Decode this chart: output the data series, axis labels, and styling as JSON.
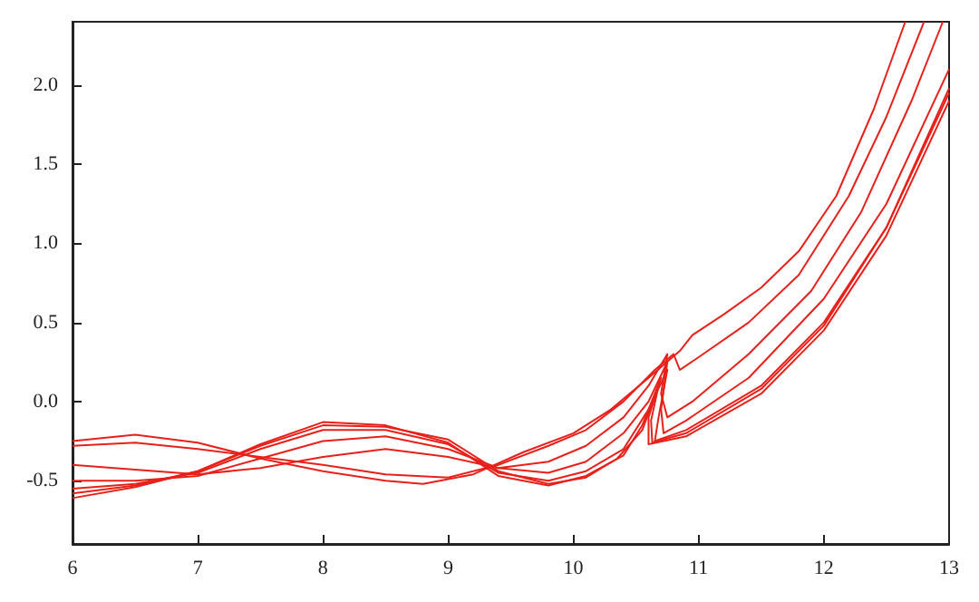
{
  "chart_data": {
    "type": "line",
    "xlim": [
      6,
      13
    ],
    "ylim": [
      -0.9,
      2.4
    ],
    "xticks": [
      6,
      7,
      8,
      9,
      10,
      11,
      12,
      13
    ],
    "yticks": [
      -0.5,
      {
        "value": 0,
        "label": "0.0"
      },
      {
        "value": 0.5,
        "label": "0.5"
      },
      {
        "value": 1,
        "label": "1.0"
      },
      {
        "value": 1.5,
        "label": "1.5"
      },
      {
        "value": 2,
        "label": "2.0"
      }
    ],
    "series": [
      {
        "color": "#e8201a",
        "x": [
          6,
          6.5,
          7,
          7.5,
          8,
          8.5,
          8.8,
          9.2,
          9.6,
          10,
          10.3,
          10.6,
          10.85,
          10.95,
          11.2,
          11.5,
          11.8,
          12.1,
          12.4,
          12.65
        ],
        "values": [
          -0.25,
          -0.21,
          -0.26,
          -0.36,
          -0.44,
          -0.5,
          -0.52,
          -0.46,
          -0.32,
          -0.2,
          -0.05,
          0.15,
          0.32,
          0.42,
          0.55,
          0.72,
          0.95,
          1.3,
          1.85,
          2.4
        ]
      },
      {
        "color": "#e8201a",
        "x": [
          6,
          6.5,
          7,
          7.5,
          8,
          8.5,
          9,
          9.4,
          9.8,
          10.1,
          10.4,
          10.65,
          10.8,
          10.85,
          11,
          11.4,
          11.8,
          12.2,
          12.5,
          12.8
        ],
        "values": [
          -0.28,
          -0.26,
          -0.3,
          -0.35,
          -0.4,
          -0.46,
          -0.48,
          -0.4,
          -0.28,
          -0.18,
          0,
          0.2,
          0.3,
          0.2,
          0.28,
          0.5,
          0.8,
          1.3,
          1.8,
          2.4
        ]
      },
      {
        "color": "#e8201a",
        "x": [
          6,
          6.5,
          7,
          7.5,
          8,
          8.5,
          9,
          9.4,
          9.8,
          10.1,
          10.4,
          10.6,
          10.75,
          10.7,
          10.75,
          10.95,
          11.4,
          11.9,
          12.3,
          12.7,
          12.95
        ],
        "values": [
          -0.4,
          -0.43,
          -0.46,
          -0.42,
          -0.35,
          -0.3,
          -0.35,
          -0.42,
          -0.38,
          -0.28,
          -0.1,
          0.1,
          0.3,
          0.05,
          -0.1,
          0,
          0.3,
          0.7,
          1.2,
          1.9,
          2.4
        ]
      },
      {
        "color": "#e8201a",
        "x": [
          6,
          6.5,
          7,
          7.5,
          8,
          8.5,
          9,
          9.4,
          9.8,
          10.1,
          10.4,
          10.6,
          10.75,
          10.7,
          10.72,
          10.9,
          11.4,
          12,
          12.5,
          13
        ],
        "values": [
          -0.5,
          -0.5,
          -0.47,
          -0.36,
          -0.25,
          -0.22,
          -0.3,
          -0.42,
          -0.45,
          -0.38,
          -0.2,
          0,
          0.25,
          -0.05,
          -0.2,
          -0.12,
          0.15,
          0.65,
          1.25,
          2.1
        ]
      },
      {
        "color": "#e8201a",
        "x": [
          6,
          6.5,
          7,
          7.5,
          8,
          8.5,
          9,
          9.4,
          9.8,
          10.1,
          10.4,
          10.6,
          10.75,
          10.68,
          10.65,
          10.9,
          11.5,
          12,
          12.5,
          13
        ],
        "values": [
          -0.55,
          -0.52,
          -0.45,
          -0.3,
          -0.18,
          -0.18,
          -0.27,
          -0.45,
          -0.5,
          -0.44,
          -0.3,
          -0.05,
          0.2,
          -0.1,
          -0.25,
          -0.18,
          0.1,
          0.5,
          1.1,
          1.95
        ]
      },
      {
        "color": "#e8201a",
        "x": [
          6,
          6.5,
          7,
          7.5,
          8,
          8.5,
          9,
          9.4,
          9.8,
          10.1,
          10.4,
          10.55,
          10.7,
          10.6,
          10.6,
          10.9,
          11.5,
          12,
          12.5,
          13
        ],
        "values": [
          -0.58,
          -0.53,
          -0.44,
          -0.27,
          -0.13,
          -0.15,
          -0.26,
          -0.47,
          -0.53,
          -0.47,
          -0.34,
          -0.15,
          0.15,
          -0.1,
          -0.27,
          -0.22,
          0.05,
          0.45,
          1.05,
          1.9
        ]
      },
      {
        "color": "#e8201a",
        "x": [
          6,
          6.5,
          7,
          7.5,
          8,
          8.5,
          9,
          9.4,
          9.8,
          10.1,
          10.35,
          10.55,
          10.68,
          10.62,
          10.63,
          10.9,
          11.5,
          12,
          12.5,
          13
        ],
        "values": [
          -0.61,
          -0.54,
          -0.44,
          -0.28,
          -0.15,
          -0.16,
          -0.24,
          -0.44,
          -0.52,
          -0.48,
          -0.36,
          -0.18,
          0.1,
          -0.12,
          -0.26,
          -0.2,
          0.08,
          0.48,
          1.1,
          1.98
        ]
      }
    ]
  }
}
